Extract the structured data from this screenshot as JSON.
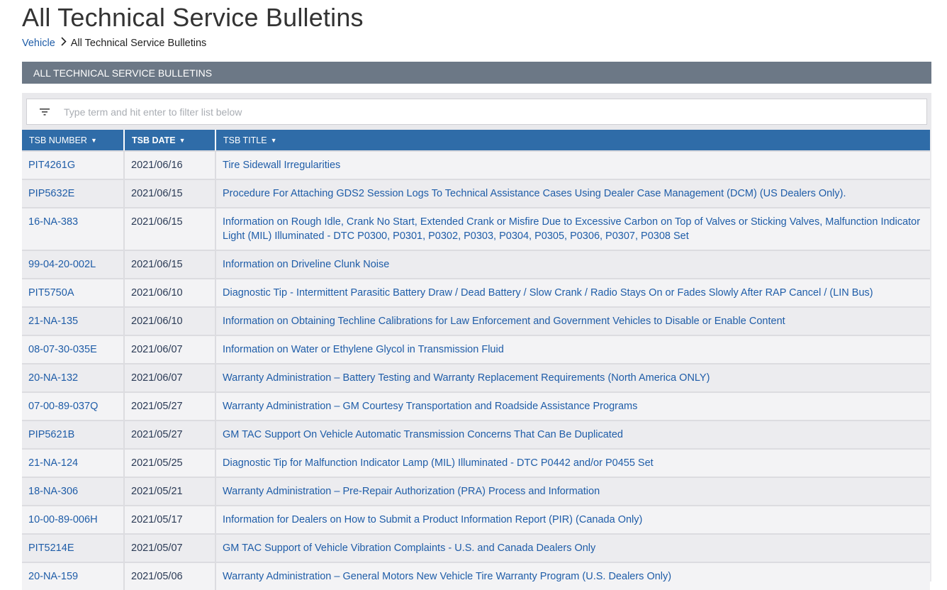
{
  "page": {
    "title": "All Technical Service Bulletins"
  },
  "breadcrumb": {
    "parent": "Vehicle",
    "current": "All Technical Service Bulletins"
  },
  "section": {
    "header": "ALL TECHNICAL SERVICE BULLETINS"
  },
  "filter": {
    "placeholder": "Type term and hit enter to filter list below",
    "value": ""
  },
  "table": {
    "columns": [
      "TSB NUMBER",
      "TSB DATE",
      "TSB TITLE"
    ],
    "active_sort_column": "TSB DATE",
    "rows": [
      {
        "number": "PIT4261G",
        "date": "2021/06/16",
        "title": "Tire Sidewall Irregularities"
      },
      {
        "number": "PIP5632E",
        "date": "2021/06/15",
        "title": "Procedure For Attaching GDS2 Session Logs To Technical Assistance Cases Using Dealer Case Management (DCM) (US Dealers Only)."
      },
      {
        "number": "16-NA-383",
        "date": "2021/06/15",
        "title": "Information on Rough Idle, Crank No Start, Extended Crank or Misfire Due to Excessive Carbon on Top of Valves or Sticking Valves, Malfunction Indicator Light (MIL) Illuminated - DTC P0300, P0301, P0302, P0303, P0304, P0305, P0306, P0307, P0308 Set"
      },
      {
        "number": "99-04-20-002L",
        "date": "2021/06/15",
        "title": "Information on Driveline Clunk Noise"
      },
      {
        "number": "PIT5750A",
        "date": "2021/06/10",
        "title": "Diagnostic Tip - Intermittent Parasitic Battery Draw / Dead Battery / Slow Crank / Radio Stays On or Fades Slowly After RAP Cancel / (LIN Bus)"
      },
      {
        "number": "21-NA-135",
        "date": "2021/06/10",
        "title": "Information on Obtaining Techline Calibrations for Law Enforcement and Government Vehicles to Disable or Enable Content"
      },
      {
        "number": "08-07-30-035E",
        "date": "2021/06/07",
        "title": "Information on Water or Ethylene Glycol in Transmission Fluid"
      },
      {
        "number": "20-NA-132",
        "date": "2021/06/07",
        "title": "Warranty Administration – Battery Testing and Warranty Replacement Requirements (North America ONLY)"
      },
      {
        "number": "07-00-89-037Q",
        "date": "2021/05/27",
        "title": "Warranty Administration – GM Courtesy Transportation and Roadside Assistance Programs"
      },
      {
        "number": "PIP5621B",
        "date": "2021/05/27",
        "title": "GM TAC Support On Vehicle Automatic Transmission Concerns That Can Be Duplicated"
      },
      {
        "number": "21-NA-124",
        "date": "2021/05/25",
        "title": "Diagnostic Tip for Malfunction Indicator Lamp (MIL) Illuminated - DTC P0442 and/or P0455 Set"
      },
      {
        "number": "18-NA-306",
        "date": "2021/05/21",
        "title": "Warranty Administration – Pre-Repair Authorization (PRA) Process and Information"
      },
      {
        "number": "10-00-89-006H",
        "date": "2021/05/17",
        "title": "Information for Dealers on How to Submit a Product Information Report (PIR) (Canada Only)"
      },
      {
        "number": "PIT5214E",
        "date": "2021/05/07",
        "title": "GM TAC Support of Vehicle Vibration Complaints - U.S. and Canada Dealers Only"
      },
      {
        "number": "20-NA-159",
        "date": "2021/05/06",
        "title": "Warranty Administration – General Motors New Vehicle Tire Warranty Program (U.S. Dealers Only)"
      }
    ]
  },
  "icons": {
    "filter": "filter-icon",
    "breadcrumb_separator": "chevron-right-icon",
    "sort": "sort-caret-down-icon"
  },
  "colors": {
    "section_bar": "#6c7886",
    "table_header": "#2f6ca8",
    "link": "#1f5da8"
  }
}
